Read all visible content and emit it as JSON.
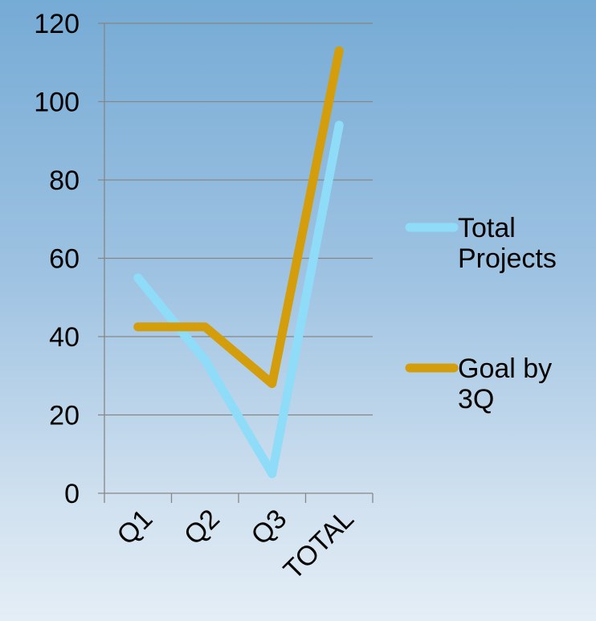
{
  "chart_data": {
    "type": "line",
    "categories": [
      "Q1",
      "Q2",
      "Q3",
      "TOTAL"
    ],
    "series": [
      {
        "name": "Total Projects",
        "values": [
          55,
          34,
          5,
          94
        ],
        "color": "#8fdcf8"
      },
      {
        "name": "Goal by 3Q",
        "values": [
          42.5,
          42.5,
          28,
          113
        ],
        "color": "#d39d0b"
      }
    ],
    "title": "",
    "xlabel": "",
    "ylabel": "",
    "ylim": [
      0,
      120
    ],
    "yticks": [
      0,
      20,
      40,
      60,
      80,
      100,
      120
    ],
    "grid": true,
    "legend_position": "right"
  }
}
